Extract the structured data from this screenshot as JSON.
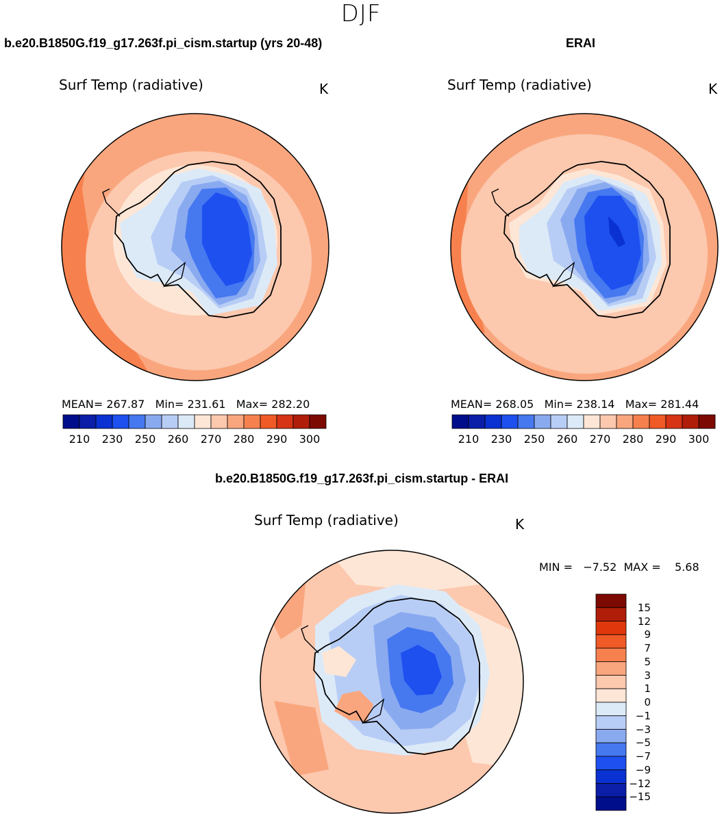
{
  "season": "DJF",
  "panel_left": {
    "title": "b.e20.B1850G.f19_g17.263f.pi_cism.startup (yrs 20-48)",
    "variable": "Surf Temp (radiative)",
    "units": "K",
    "stats": "MEAN= 267.87   Min= 231.61   Max= 282.20"
  },
  "panel_right": {
    "title": "ERAI",
    "variable": "Surf Temp (radiative)",
    "units": "K",
    "stats": "MEAN= 268.05   Min= 238.14   Max= 281.44"
  },
  "panel_diff": {
    "title": "b.e20.B1850G.f19_g17.263f.pi_cism.startup - ERAI",
    "variable": "Surf Temp (radiative)",
    "units": "K",
    "stats": "MIN =   −7.52  MAX =    5.68"
  },
  "colorbar_abs": {
    "colors": [
      "#000e8c",
      "#0a1ea8",
      "#0a32d2",
      "#1e50f0",
      "#4678f0",
      "#8aaaf0",
      "#b8cdf5",
      "#dceaf8",
      "#fde6d6",
      "#fcc8ae",
      "#f9a67e",
      "#f7814e",
      "#f05a26",
      "#d63414",
      "#b01e0a",
      "#7d0a02"
    ],
    "tick_labels": [
      "210",
      "230",
      "250",
      "260",
      "270",
      "280",
      "290",
      "300"
    ]
  },
  "colorbar_diff": {
    "colors": [
      "#7d0a02",
      "#b01e0a",
      "#e0380c",
      "#f05a26",
      "#f7814e",
      "#f9a67e",
      "#fcc8ae",
      "#fde6d6",
      "#dceaf8",
      "#b8cdf5",
      "#8aaaf0",
      "#4678f0",
      "#1e50f0",
      "#0a32d2",
      "#0a1ea8",
      "#000e8c"
    ],
    "tick_labels": [
      "15",
      "12",
      "9",
      "7",
      "5",
      "3",
      "1",
      "0",
      "−1",
      "−3",
      "−5",
      "−7",
      "−9",
      "−12",
      "−15"
    ]
  }
}
